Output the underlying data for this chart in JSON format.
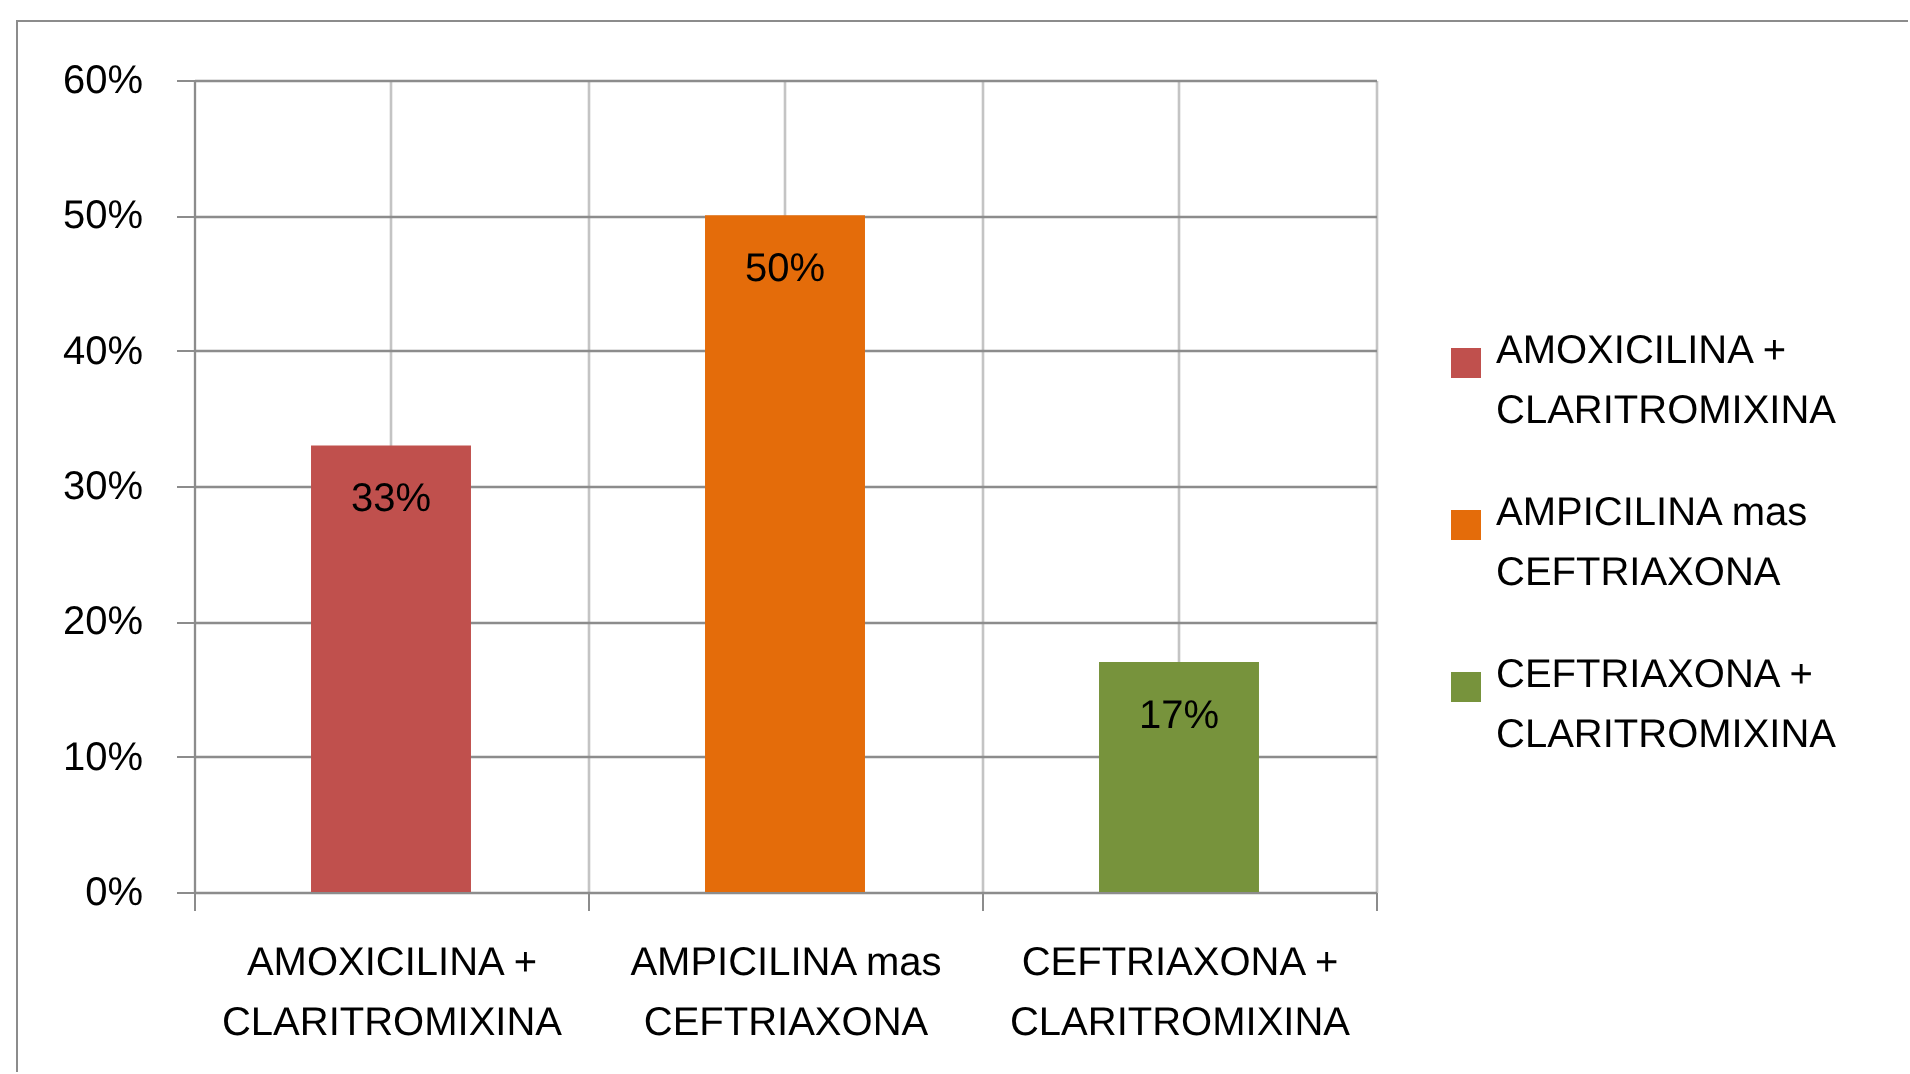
{
  "chart_data": {
    "type": "bar",
    "categories": [
      "AMOXICILINA + CLARITROMIXINA",
      "AMPICILINA mas CEFTRIAXONA",
      "CEFTRIAXONA + CLARITROMIXINA"
    ],
    "series": [
      {
        "name": "AMOXICILINA + CLARITROMIXINA",
        "color": "#c0504d",
        "values": [
          33,
          null,
          null
        ],
        "value_labels": [
          "33%",
          null,
          null
        ]
      },
      {
        "name": "AMPICILINA mas CEFTRIAXONA",
        "color": "#e46c0a",
        "values": [
          null,
          50,
          null
        ],
        "value_labels": [
          null,
          "50%",
          null
        ]
      },
      {
        "name": "CEFTRIAXONA + CLARITROMIXINA",
        "color": "#77933c",
        "values": [
          null,
          null,
          17
        ],
        "value_labels": [
          null,
          null,
          "17%"
        ]
      }
    ],
    "ylim": [
      0,
      60
    ],
    "yticks": [
      {
        "value": 0,
        "label": "0%"
      },
      {
        "value": 10,
        "label": "10%"
      },
      {
        "value": 20,
        "label": "20%"
      },
      {
        "value": 30,
        "label": "30%"
      },
      {
        "value": 40,
        "label": "40%"
      },
      {
        "value": 50,
        "label": "50%"
      },
      {
        "value": 60,
        "label": "60%"
      }
    ],
    "grid": true,
    "legend": "right"
  }
}
